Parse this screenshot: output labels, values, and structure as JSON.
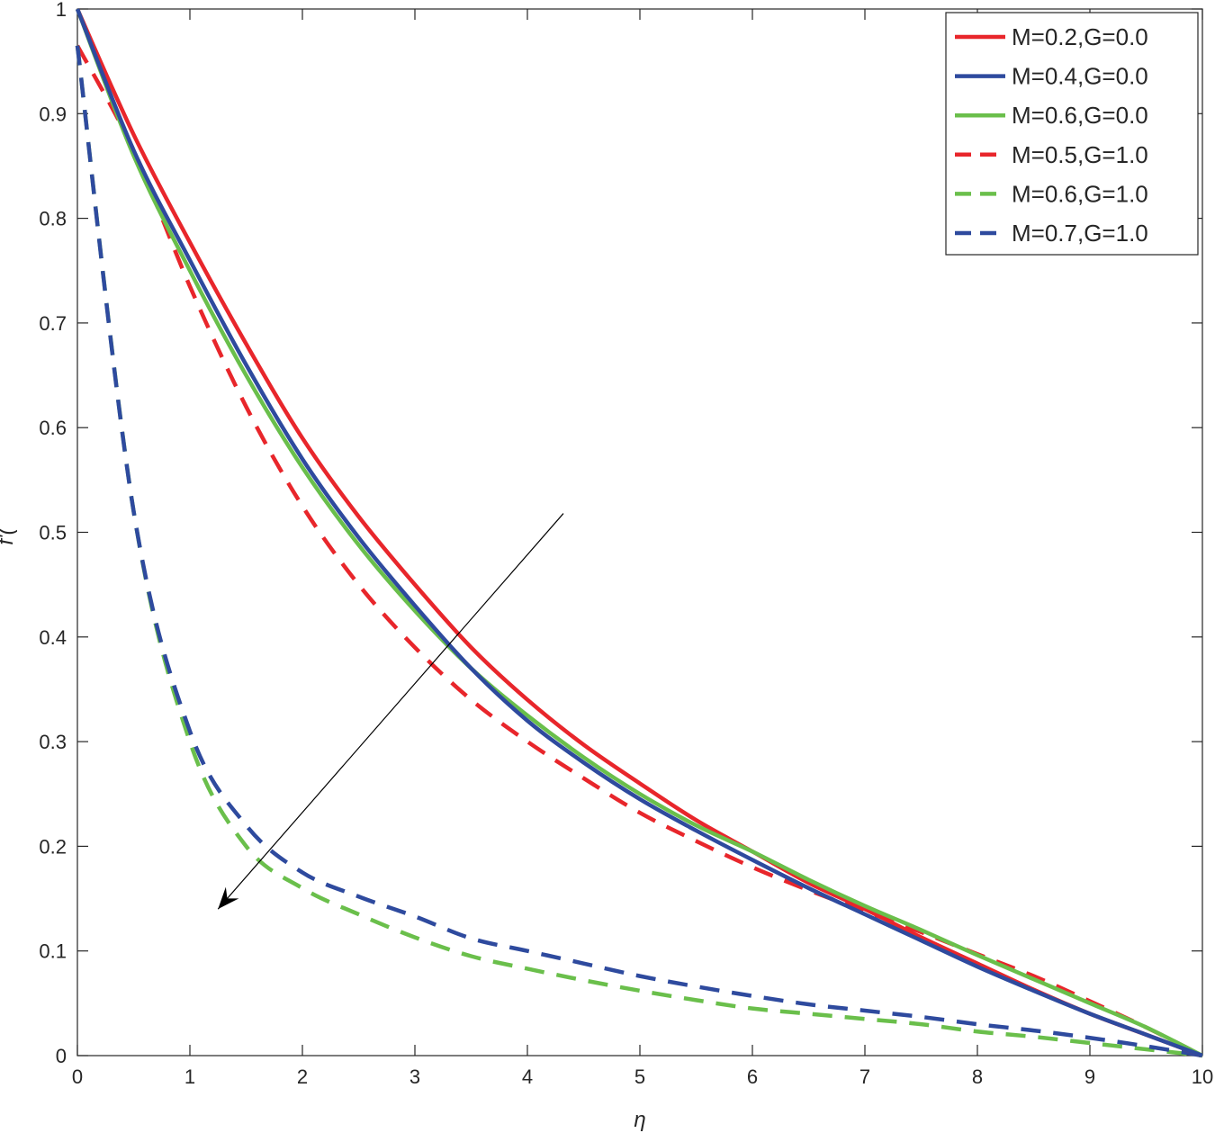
{
  "chart_data": {
    "type": "line",
    "xlabel": "η",
    "ylabel": "f'(",
    "xlim": [
      0,
      10
    ],
    "ylim": [
      0,
      1
    ],
    "xticks": [
      "0",
      "1",
      "2",
      "3",
      "4",
      "5",
      "6",
      "7",
      "8",
      "9",
      "10"
    ],
    "yticks": [
      "0",
      "0.1",
      "0.2",
      "0.3",
      "0.4",
      "0.5",
      "0.6",
      "0.7",
      "0.8",
      "0.9",
      "1"
    ],
    "grid": false,
    "legend_position": "top-right",
    "x": [
      0,
      0.5,
      1,
      1.5,
      2,
      2.5,
      3,
      3.5,
      4,
      4.5,
      5,
      5.5,
      6,
      6.5,
      7,
      7.5,
      8,
      8.5,
      9,
      9.5,
      10
    ],
    "series": [
      {
        "name": "M=0.2,G=0.0",
        "color": "#e8262b",
        "style": "solid",
        "values": [
          1.0,
          0.88,
          0.777,
          0.68,
          0.59,
          0.515,
          0.45,
          0.39,
          0.34,
          0.297,
          0.26,
          0.225,
          0.195,
          0.165,
          0.14,
          0.113,
          0.088,
          0.063,
          0.04,
          0.02,
          0.0
        ]
      },
      {
        "name": "M=0.4,G=0.0",
        "color": "#2e4a9e",
        "style": "solid",
        "values": [
          1.0,
          0.865,
          0.76,
          0.66,
          0.57,
          0.495,
          0.43,
          0.37,
          0.32,
          0.28,
          0.245,
          0.215,
          0.187,
          0.16,
          0.135,
          0.11,
          0.085,
          0.062,
          0.04,
          0.02,
          0.0
        ]
      },
      {
        "name": "M=0.6,G=0.0",
        "color": "#6abf4b",
        "style": "solid",
        "values": [
          1.0,
          0.86,
          0.75,
          0.65,
          0.562,
          0.488,
          0.425,
          0.37,
          0.325,
          0.285,
          0.25,
          0.22,
          0.195,
          0.168,
          0.143,
          0.12,
          0.096,
          0.073,
          0.05,
          0.027,
          0.0
        ]
      },
      {
        "name": "M=0.5,G=1.0",
        "color": "#e8262b",
        "style": "dashed",
        "values": [
          0.965,
          0.865,
          0.735,
          0.62,
          0.525,
          0.45,
          0.39,
          0.34,
          0.3,
          0.265,
          0.232,
          0.205,
          0.18,
          0.158,
          0.138,
          0.118,
          0.097,
          0.076,
          0.052,
          0.027,
          0.0
        ]
      },
      {
        "name": "M=0.6,G=1.0",
        "color": "#6abf4b",
        "style": "dashed",
        "values": [
          0.965,
          0.52,
          0.3,
          0.2,
          0.16,
          0.135,
          0.113,
          0.095,
          0.083,
          0.072,
          0.062,
          0.053,
          0.045,
          0.04,
          0.035,
          0.03,
          0.023,
          0.018,
          0.012,
          0.006,
          0.0
        ]
      },
      {
        "name": "M=0.7,G=1.0",
        "color": "#2e4a9e",
        "style": "dashed",
        "values": [
          0.965,
          0.52,
          0.31,
          0.22,
          0.175,
          0.152,
          0.133,
          0.112,
          0.1,
          0.088,
          0.076,
          0.066,
          0.057,
          0.049,
          0.043,
          0.037,
          0.03,
          0.024,
          0.017,
          0.009,
          0.0
        ]
      }
    ],
    "annotations": [
      {
        "type": "arrow",
        "from": [
          4.32,
          0.518
        ],
        "to": [
          1.25,
          0.14
        ]
      }
    ]
  }
}
